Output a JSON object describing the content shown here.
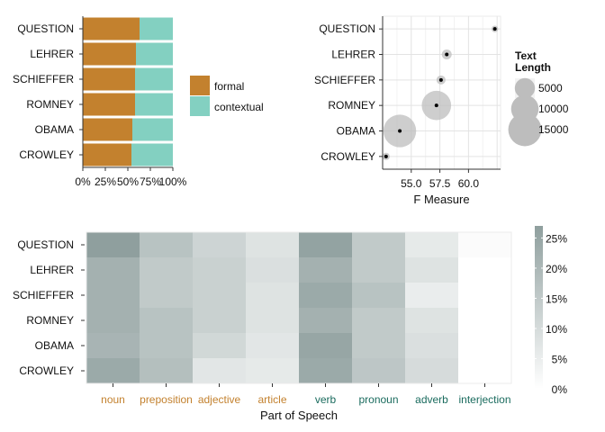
{
  "chart_data": [
    {
      "type": "bar",
      "stacked": true,
      "orientation": "horizontal",
      "categories": [
        "QUESTION",
        "LEHRER",
        "SCHIEFFER",
        "ROMNEY",
        "OBAMA",
        "CROWLEY"
      ],
      "series": [
        {
          "name": "formal",
          "values": [
            0.63,
            0.59,
            0.58,
            0.58,
            0.55,
            0.54
          ]
        },
        {
          "name": "contextual",
          "values": [
            0.37,
            0.41,
            0.42,
            0.42,
            0.45,
            0.46
          ]
        }
      ],
      "xticks": [
        "0%",
        "25%",
        "50%",
        "75%",
        "100%"
      ],
      "xlim": [
        0,
        1
      ],
      "legend": "right",
      "colors": {
        "formal": "#c3812e",
        "contextual": "#83d0c1"
      }
    },
    {
      "type": "scatter",
      "categories": [
        "QUESTION",
        "LEHRER",
        "SCHIEFFER",
        "ROMNEY",
        "OBAMA",
        "CROWLEY"
      ],
      "x": [
        62.3,
        58.1,
        57.6,
        57.2,
        54.0,
        52.8
      ],
      "size": [
        300,
        900,
        700,
        11500,
        14500,
        400
      ],
      "xlabel": "F Measure",
      "xticks": [
        "55.0",
        "57.5",
        "60.0"
      ],
      "xlim": [
        52.5,
        62.8
      ],
      "legend_title": "Text\nLength",
      "legend_items": [
        "5000",
        "10000",
        "15000"
      ],
      "legend_values": [
        5000,
        10000,
        15000
      ],
      "grid": true,
      "background": "#ffffff"
    },
    {
      "type": "heatmap",
      "rows": [
        "QUESTION",
        "LEHRER",
        "SCHIEFFER",
        "ROMNEY",
        "OBAMA",
        "CROWLEY"
      ],
      "columns": [
        "noun",
        "preposition",
        "adjective",
        "article",
        "verb",
        "pronoun",
        "adverb",
        "interjection"
      ],
      "column_colors": [
        "#c3812e",
        "#c3812e",
        "#c3812e",
        "#c3812e",
        "#1a6b5e",
        "#1a6b5e",
        "#1a6b5e",
        "#1a6b5e"
      ],
      "values": [
        [
          0.27,
          0.17,
          0.12,
          0.08,
          0.26,
          0.15,
          0.06,
          0.01
        ],
        [
          0.22,
          0.15,
          0.13,
          0.09,
          0.22,
          0.15,
          0.08,
          0.0
        ],
        [
          0.22,
          0.15,
          0.13,
          0.08,
          0.24,
          0.17,
          0.05,
          0.0
        ],
        [
          0.22,
          0.17,
          0.13,
          0.08,
          0.22,
          0.15,
          0.08,
          0.0
        ],
        [
          0.21,
          0.17,
          0.11,
          0.07,
          0.25,
          0.15,
          0.09,
          0.0
        ],
        [
          0.24,
          0.18,
          0.07,
          0.06,
          0.24,
          0.16,
          0.1,
          0.0
        ]
      ],
      "xlabel": "Part of Speech",
      "legend_ticks": [
        "25%",
        "20%",
        "15%",
        "10%",
        "5%",
        "0%"
      ],
      "legend_values": [
        0.25,
        0.2,
        0.15,
        0.1,
        0.05,
        0.0
      ],
      "range": [
        0,
        0.27
      ],
      "color_low": "#ffffff",
      "color_high": "#8f9f9e"
    }
  ]
}
